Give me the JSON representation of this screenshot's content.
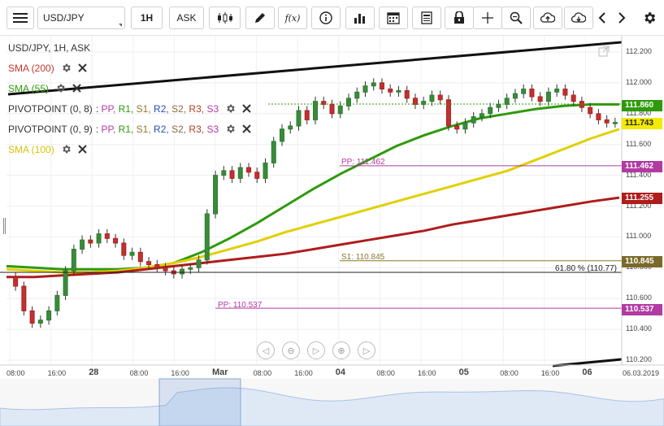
{
  "toolbar": {
    "symbol": "USD/JPY",
    "timeframe": "1H",
    "price_type": "ASK",
    "fx_label": "f(x)"
  },
  "legend": {
    "title": "USD/JPY, 1H, ASK",
    "rows": [
      {
        "label": "SMA (200)",
        "color": "#c0392b",
        "kind": "plain"
      },
      {
        "label": "SMA (55)",
        "color": "#2e9a0a",
        "kind": "plain"
      },
      {
        "label": "PIVOTPOINT (0, 8)",
        "kind": "pivot"
      },
      {
        "label": "PIVOTPOINT (0, 9)",
        "kind": "pivot"
      },
      {
        "label": "SMA (100)",
        "color": "#e0d000",
        "kind": "plain"
      }
    ],
    "pivot_items": [
      {
        "text": "PP,",
        "color": "#b23aa3"
      },
      {
        "text": "R1,",
        "color": "#2e9a0a"
      },
      {
        "text": "S1,",
        "color": "#8a7a2a"
      },
      {
        "text": "R2,",
        "color": "#2a4fb3"
      },
      {
        "text": "S2,",
        "color": "#8a6a3a"
      },
      {
        "text": "R3,",
        "color": "#b24020"
      },
      {
        "text": "S3",
        "color": "#b23aa3"
      }
    ]
  },
  "price_axis": [
    "112.200",
    "112.000",
    "111.800",
    "111.600",
    "111.400",
    "111.200",
    "111.000",
    "110.800",
    "110.600",
    "110.400",
    "110.200"
  ],
  "time_axis": [
    {
      "text": "08:00",
      "bold": false
    },
    {
      "text": "16:00",
      "bold": false
    },
    {
      "text": "28",
      "bold": true
    },
    {
      "text": "08:00",
      "bold": false
    },
    {
      "text": "16:00",
      "bold": false
    },
    {
      "text": "Mar",
      "bold": true
    },
    {
      "text": "08:00",
      "bold": false
    },
    {
      "text": "16:00",
      "bold": false
    },
    {
      "text": "04",
      "bold": true
    },
    {
      "text": "08:00",
      "bold": false
    },
    {
      "text": "16:00",
      "bold": false
    },
    {
      "text": "05",
      "bold": true
    },
    {
      "text": "08:00",
      "bold": false
    },
    {
      "text": "16:00",
      "bold": false
    },
    {
      "text": "06",
      "bold": true
    },
    {
      "text": "06.03.2019",
      "bold": false
    }
  ],
  "price_labels": [
    {
      "value": "111.860",
      "color": "#2e9a0a"
    },
    {
      "value": "111.743",
      "color": "#f2ea00"
    },
    {
      "value": "111.462",
      "color": "#b23aa3"
    },
    {
      "value": "111.255",
      "color": "#b01c1c"
    },
    {
      "value": "110.845",
      "color": "#7a6a2a"
    },
    {
      "value": "110.537",
      "color": "#b23aa3"
    }
  ],
  "annotations": {
    "pp_upper": "PP: 111.462",
    "s1": "S1: 110.845",
    "fib": "61.80 % (110.77)",
    "pp_lower": "PP: 110.537"
  },
  "chart_data": {
    "type": "candlestick",
    "symbol": "USD/JPY",
    "timeframe": "1H",
    "ylim": [
      110.2,
      112.2
    ],
    "ticks": [
      110.2,
      110.4,
      110.6,
      110.8,
      111.0,
      111.2,
      111.4,
      111.6,
      111.8,
      112.0,
      112.2
    ],
    "lines": {
      "pp_upper": 111.462,
      "s1": 110.845,
      "fib_61_8": 110.77,
      "pp_lower": 110.537
    },
    "candles_close": [
      110.68,
      110.52,
      110.44,
      110.46,
      110.52,
      110.62,
      110.78,
      110.92,
      110.98,
      110.96,
      111.02,
      110.99,
      110.96,
      110.88,
      110.9,
      110.84,
      110.82,
      110.8,
      110.78,
      110.76,
      110.79,
      110.8,
      110.85,
      111.15,
      111.4,
      111.43,
      111.38,
      111.45,
      111.42,
      111.38,
      111.48,
      111.62,
      111.7,
      111.72,
      111.82,
      111.76,
      111.88,
      111.86,
      111.8,
      111.85,
      111.9,
      111.94,
      111.98,
      112.0,
      111.96,
      111.94,
      111.95,
      111.9,
      111.86,
      111.88,
      111.92,
      111.89,
      111.72,
      111.7,
      111.74,
      111.78,
      111.8,
      111.84,
      111.86,
      111.9,
      111.93,
      111.96,
      111.91,
      111.88,
      111.94,
      111.96,
      111.92,
      111.88,
      111.84,
      111.8,
      111.76,
      111.74,
      111.743
    ],
    "series": [
      {
        "name": "SMA (55)",
        "color": "#2e9a0a",
        "values": [
          110.81,
          110.8,
          110.79,
          110.79,
          110.79,
          110.8,
          110.83,
          110.9,
          110.99,
          111.09,
          111.2,
          111.31,
          111.41,
          111.5,
          111.59,
          111.66,
          111.72,
          111.77,
          111.8,
          111.83,
          111.85,
          111.86,
          111.86
        ]
      },
      {
        "name": "SMA (100)",
        "color": "#e0d000",
        "values": [
          110.79,
          110.78,
          110.77,
          110.77,
          110.78,
          110.8,
          110.83,
          110.87,
          110.92,
          110.97,
          111.03,
          111.08,
          111.13,
          111.18,
          111.23,
          111.28,
          111.33,
          111.38,
          111.43,
          111.5,
          111.57,
          111.64,
          111.7
        ]
      },
      {
        "name": "SMA (200)",
        "color": "#b01c1c",
        "values": [
          110.74,
          110.74,
          110.75,
          110.76,
          110.77,
          110.79,
          110.81,
          110.83,
          110.85,
          110.87,
          110.89,
          110.92,
          110.95,
          110.98,
          111.01,
          111.04,
          111.08,
          111.11,
          111.14,
          111.17,
          111.2,
          111.23,
          111.255
        ]
      }
    ]
  }
}
